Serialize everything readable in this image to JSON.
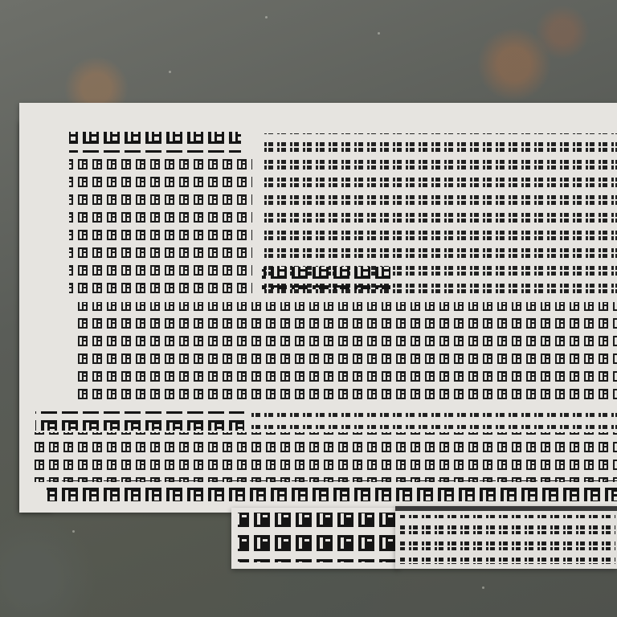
{
  "scene": {
    "description_free": true,
    "colors": {
      "ground": "#5f625d",
      "paper": "#e6e4e0",
      "ink": "#1a1a1a"
    }
  },
  "newspaper": {
    "headline": "",
    "columns": []
  }
}
